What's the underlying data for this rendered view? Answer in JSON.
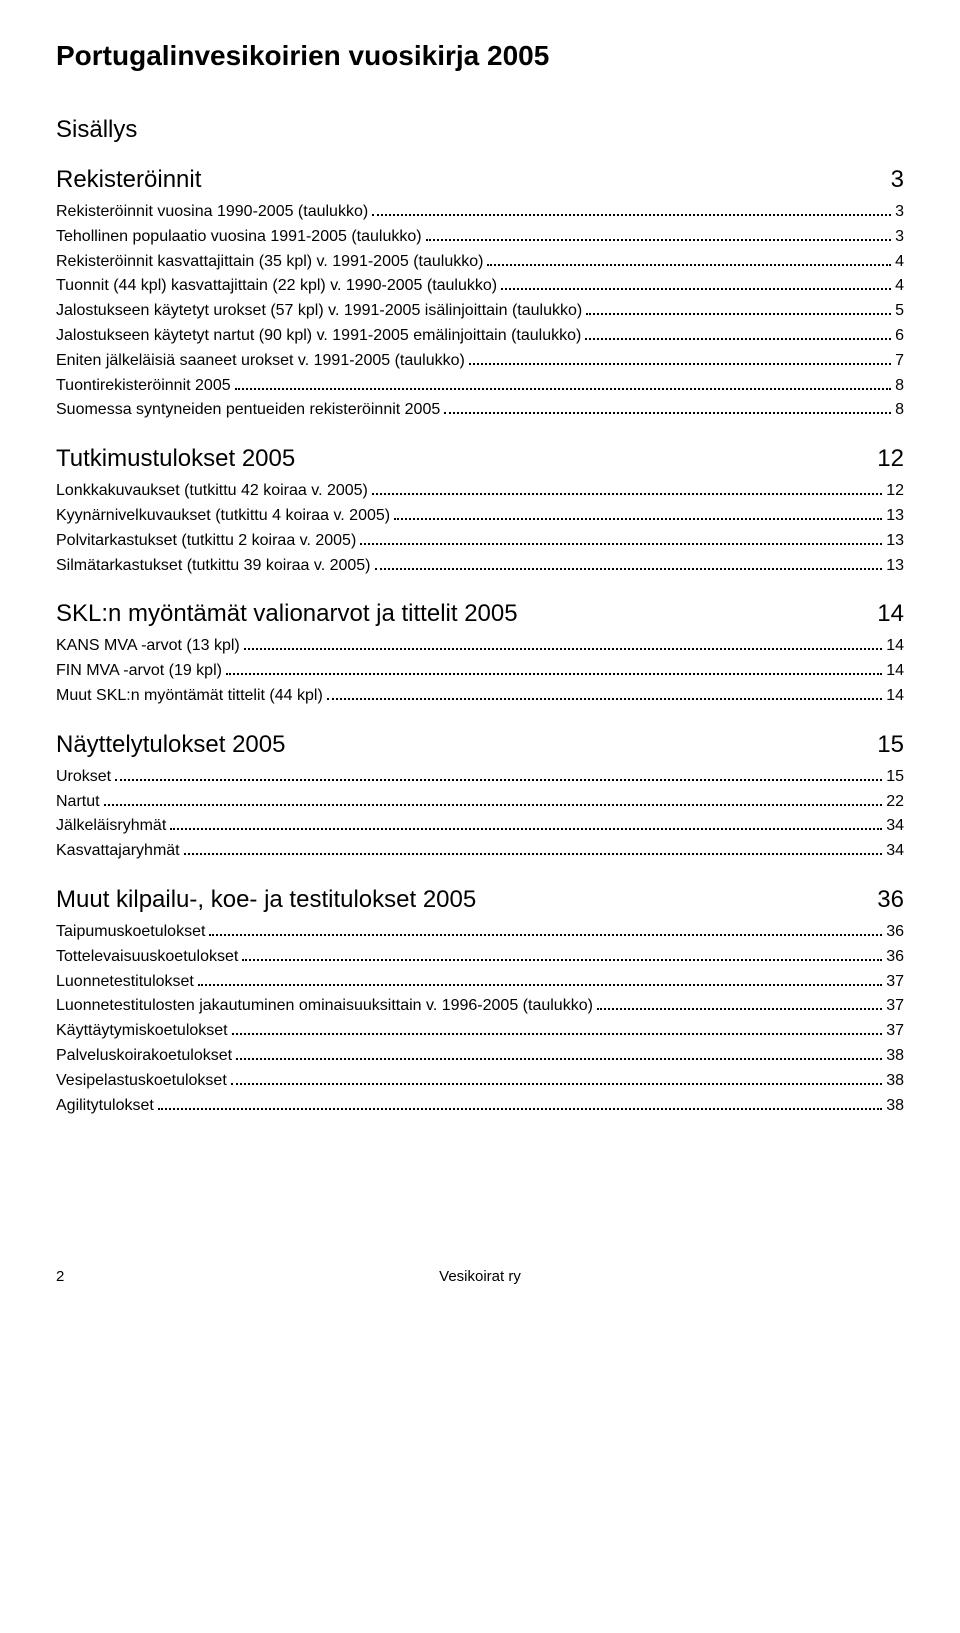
{
  "title": "Portugalinvesikoirien vuosikirja 2005",
  "sections": [
    {
      "heading": "Sisällys",
      "heading_page": "",
      "entries": []
    },
    {
      "heading": "Rekisteröinnit",
      "heading_page": "3",
      "entries": [
        {
          "label": "Rekisteröinnit vuosina 1990-2005 (taulukko)",
          "page": "3"
        },
        {
          "label": "Tehollinen populaatio vuosina 1991-2005 (taulukko)",
          "page": "3"
        },
        {
          "label": "Rekisteröinnit kasvattajittain (35 kpl) v. 1991-2005 (taulukko)",
          "page": "4"
        },
        {
          "label": "Tuonnit (44 kpl) kasvattajittain (22 kpl) v. 1990-2005 (taulukko)",
          "page": "4"
        },
        {
          "label": "Jalostukseen käytetyt urokset (57 kpl) v. 1991-2005 isälinjoittain (taulukko)",
          "page": "5"
        },
        {
          "label": "Jalostukseen käytetyt nartut (90 kpl) v. 1991-2005 emälinjoittain (taulukko)",
          "page": "6"
        },
        {
          "label": "Eniten jälkeläisiä saaneet urokset v. 1991-2005 (taulukko)",
          "page": "7"
        },
        {
          "label": "Tuontirekisteröinnit 2005",
          "page": "8"
        },
        {
          "label": "Suomessa syntyneiden pentueiden rekisteröinnit 2005",
          "page": "8"
        }
      ]
    },
    {
      "heading": "Tutkimustulokset 2005",
      "heading_page": "12",
      "entries": [
        {
          "label": "Lonkkakuvaukset (tutkittu 42 koiraa v. 2005)",
          "page": "12"
        },
        {
          "label": "Kyynärnivelkuvaukset (tutkittu 4 koiraa v. 2005)",
          "page": "13"
        },
        {
          "label": "Polvitarkastukset (tutkittu 2 koiraa v. 2005)",
          "page": "13"
        },
        {
          "label": "Silmätarkastukset (tutkittu 39 koiraa v. 2005)",
          "page": "13"
        }
      ]
    },
    {
      "heading": "SKL:n myöntämät valionarvot ja tittelit 2005",
      "heading_page": "14",
      "entries": [
        {
          "label": "KANS MVA -arvot (13 kpl)",
          "page": "14"
        },
        {
          "label": "FIN MVA  -arvot (19 kpl)",
          "page": "14"
        },
        {
          "label": "Muut SKL:n myöntämät tittelit (44 kpl)",
          "page": "14"
        }
      ]
    },
    {
      "heading": "Näyttelytulokset 2005",
      "heading_page": "15",
      "entries": [
        {
          "label": "Urokset",
          "page": "15"
        },
        {
          "label": "Nartut",
          "page": "22"
        },
        {
          "label": "Jälkeläisryhmät",
          "page": "34"
        },
        {
          "label": "Kasvattajaryhmät",
          "page": "34"
        }
      ]
    },
    {
      "heading": "Muut kilpailu-, koe- ja testitulokset 2005",
      "heading_page": "36",
      "entries": [
        {
          "label": "Taipumuskoetulokset",
          "page": "36"
        },
        {
          "label": "Tottelevaisuuskoetulokset",
          "page": "36"
        },
        {
          "label": "Luonnetestitulokset",
          "page": "37"
        },
        {
          "label": "Luonnetestitulosten jakautuminen ominaisuuksittain v. 1996-2005 (taulukko)",
          "page": "37"
        },
        {
          "label": "Käyttäytymiskoetulokset",
          "page": "37"
        },
        {
          "label": "Palveluskoirakoetulokset",
          "page": "38"
        },
        {
          "label": "Vesipelastuskoetulokset",
          "page": "38"
        },
        {
          "label": "Agilitytulokset",
          "page": "38"
        }
      ]
    }
  ],
  "footer": {
    "page_num": "2",
    "org": "Vesikoirat ry"
  }
}
